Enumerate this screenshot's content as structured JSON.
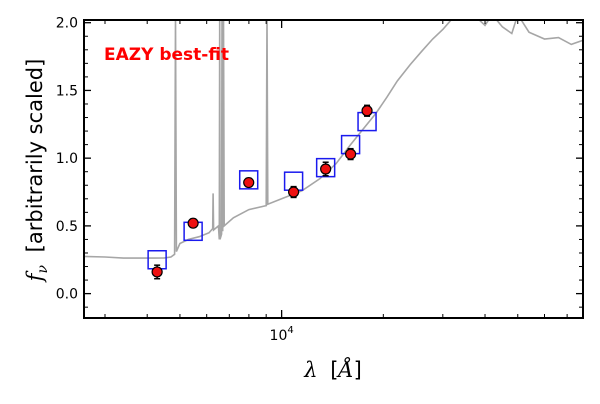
{
  "chart_data": {
    "type": "scatter",
    "annotation": "EAZY best-fit",
    "annotation_color": "#ff0000",
    "xlabel_parts": {
      "lambda": "λ",
      "bracket_open": "[",
      "unit": "Å",
      "bracket_close": "]"
    },
    "ylabel_parts": {
      "symbol": "f",
      "subscript": "ν",
      "text": "[arbitrarily scaled]"
    },
    "x_scale": "log",
    "xlim": [
      2600,
      78000
    ],
    "ylim": [
      -0.18,
      2.02
    ],
    "x_major_ticks": [
      {
        "value": 10000,
        "base": "10",
        "exp": "4"
      }
    ],
    "y_ticks": [
      {
        "value": 0.0,
        "label": "0.0"
      },
      {
        "value": 0.5,
        "label": "0.5"
      },
      {
        "value": 1.0,
        "label": "1.0"
      },
      {
        "value": 1.5,
        "label": "1.5"
      },
      {
        "value": 2.0,
        "label": "2.0"
      }
    ],
    "model_color": "#a6a6a6",
    "model_spectrum": [
      [
        2600,
        0.275
      ],
      [
        3000,
        0.27
      ],
      [
        3400,
        0.262
      ],
      [
        3800,
        0.262
      ],
      [
        4200,
        0.262
      ],
      [
        4500,
        0.264
      ],
      [
        4700,
        0.27
      ],
      [
        4820,
        0.29
      ],
      [
        4850,
        2.05
      ],
      [
        4880,
        0.31
      ],
      [
        5000,
        0.37
      ],
      [
        5300,
        0.4
      ],
      [
        5700,
        0.42
      ],
      [
        6100,
        0.45
      ],
      [
        6250,
        0.48
      ],
      [
        6270,
        0.74
      ],
      [
        6290,
        0.47
      ],
      [
        6500,
        0.5
      ],
      [
        6540,
        0.4
      ],
      [
        6555,
        2.05
      ],
      [
        6570,
        0.4
      ],
      [
        6640,
        0.44
      ],
      [
        6660,
        2.05
      ],
      [
        6690,
        0.46
      ],
      [
        6730,
        2.05
      ],
      [
        6760,
        0.5
      ],
      [
        7200,
        0.56
      ],
      [
        8000,
        0.62
      ],
      [
        9000,
        0.65
      ],
      [
        9050,
        2.05
      ],
      [
        9100,
        0.66
      ],
      [
        10000,
        0.7
      ],
      [
        11500,
        0.76
      ],
      [
        13000,
        0.85
      ],
      [
        14500,
        0.96
      ],
      [
        16000,
        1.1
      ],
      [
        17500,
        1.22
      ],
      [
        19000,
        1.33
      ],
      [
        20500,
        1.45
      ],
      [
        22000,
        1.57
      ],
      [
        24000,
        1.69
      ],
      [
        26000,
        1.79
      ],
      [
        28000,
        1.88
      ],
      [
        30000,
        1.95
      ],
      [
        32000,
        2.03
      ],
      [
        33500,
        2.06
      ],
      [
        37000,
        2.06
      ],
      [
        40000,
        1.98
      ],
      [
        42000,
        2.06
      ],
      [
        45000,
        1.97
      ],
      [
        48000,
        1.92
      ],
      [
        50000,
        2.06
      ],
      [
        54000,
        1.93
      ],
      [
        60000,
        1.88
      ],
      [
        66000,
        1.89
      ],
      [
        72000,
        1.84
      ],
      [
        78000,
        1.87
      ]
    ],
    "series": [
      {
        "kind": "observed",
        "marker": "circle",
        "color": "#ee1111",
        "points": [
          {
            "x": 4280,
            "y": 0.16,
            "err": 0.05
          },
          {
            "x": 5470,
            "y": 0.52,
            "err": 0.03
          },
          {
            "x": 7990,
            "y": 0.82,
            "err": 0.03
          },
          {
            "x": 10850,
            "y": 0.75,
            "err": 0.04
          },
          {
            "x": 13500,
            "y": 0.92,
            "err": 0.05
          },
          {
            "x": 16000,
            "y": 1.03,
            "err": 0.04
          },
          {
            "x": 17900,
            "y": 1.35,
            "err": 0.04
          }
        ]
      },
      {
        "kind": "model_photometry",
        "marker": "open-square",
        "color": "#1a1aee",
        "points": [
          {
            "x": 4280,
            "y": 0.25
          },
          {
            "x": 5470,
            "y": 0.46
          },
          {
            "x": 7990,
            "y": 0.84
          },
          {
            "x": 10850,
            "y": 0.83
          },
          {
            "x": 13500,
            "y": 0.93
          },
          {
            "x": 16000,
            "y": 1.1
          },
          {
            "x": 17900,
            "y": 1.27
          }
        ]
      }
    ]
  }
}
